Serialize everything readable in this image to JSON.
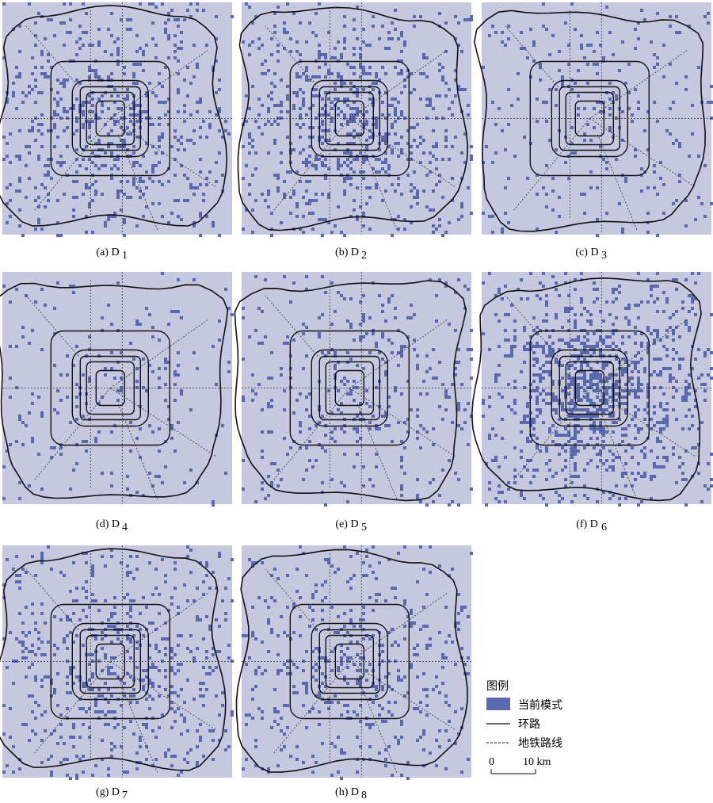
{
  "panels": [
    {
      "label": "(a) D",
      "sub": "1"
    },
    {
      "label": "(b) D",
      "sub": "2"
    },
    {
      "label": "(c) D",
      "sub": "3"
    },
    {
      "label": "(d) D",
      "sub": "4"
    },
    {
      "label": "(e) D",
      "sub": "5"
    },
    {
      "label": "(f) D",
      "sub": "6"
    },
    {
      "label": "(g) D",
      "sub": "7"
    },
    {
      "label": "(h) D",
      "sub": "8"
    }
  ],
  "legend": {
    "title": "图例",
    "items": [
      {
        "label": "当前模式"
      },
      {
        "label": "环路"
      },
      {
        "label": "地铁路线"
      }
    ],
    "scale": {
      "start": "0",
      "end": "10 km"
    }
  }
}
